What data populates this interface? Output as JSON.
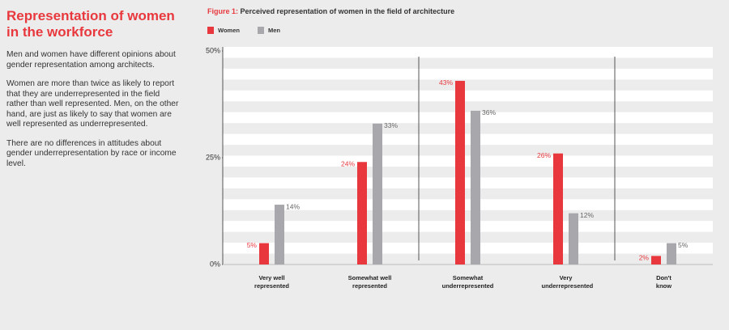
{
  "sidebar": {
    "title": "Representation of women in the workforce",
    "paragraphs": [
      "Men and women have different opinions about gender representation among architects.",
      "Women are more than twice as likely to report that they are underrepresented in the field rather than well represented. Men, on the other hand, are just as likely to say that women are well represented as underrepresented.",
      "There are no differences in attitudes about gender underrepresentation by race or income level."
    ]
  },
  "chart_data": {
    "type": "bar",
    "figure_label": "Figure 1:",
    "title": "Perceived representation of women in the field of architecture",
    "categories": [
      "Very well represented",
      "Somewhat well represented",
      "Somewhat underrepresented",
      "Very underrepresented",
      "Don't know"
    ],
    "series": [
      {
        "name": "Women",
        "color": "#e8383d",
        "values": [
          5,
          24,
          43,
          26,
          2
        ],
        "value_labels": [
          "5%",
          "24%",
          "43%",
          "26%",
          "2%"
        ]
      },
      {
        "name": "Men",
        "color": "#a8a8ac",
        "values": [
          14,
          33,
          36,
          12,
          5
        ],
        "value_labels": [
          "14%",
          "33%",
          "36%",
          "12%",
          "5%"
        ]
      }
    ],
    "ylim": [
      0,
      50
    ],
    "yticks": [
      {
        "value": 0,
        "label": "0%"
      },
      {
        "value": 25,
        "label": "25%"
      },
      {
        "value": 50,
        "label": "50%"
      }
    ]
  }
}
